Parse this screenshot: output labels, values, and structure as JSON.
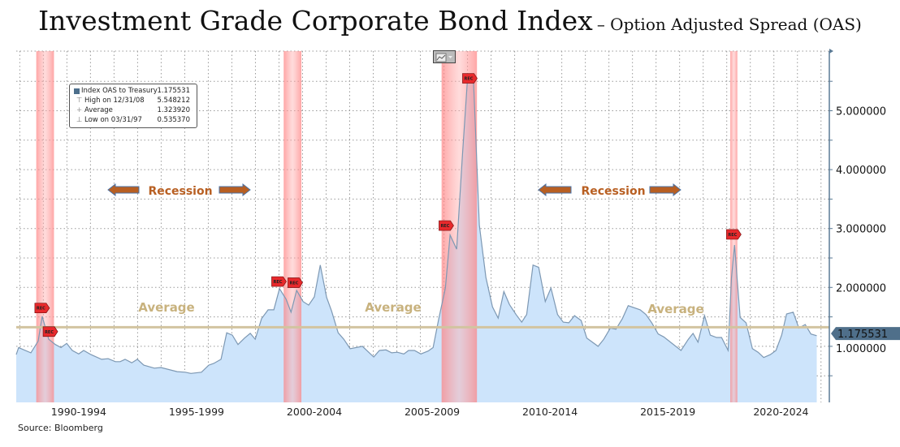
{
  "title": "Investment Grade Corporate Bond Index",
  "subtitle": "– Option Adjusted Spread (OAS)",
  "source": "Source: Bloomberg",
  "legend": {
    "rows": [
      {
        "label": "Index OAS to Treasury",
        "value": "1.175531",
        "icon": "square-icon"
      },
      {
        "label": "High on 12/31/08",
        "value": "5.548212",
        "icon": "high-marker-icon"
      },
      {
        "label": "Average",
        "value": "1.323920",
        "icon": "average-marker-icon"
      },
      {
        "label": "Low on 03/31/97",
        "value": "0.535370",
        "icon": "low-marker-icon"
      }
    ]
  },
  "annotations": {
    "recession_label": "Recession",
    "average_label": "Average",
    "rec_marker": "REC",
    "last_value": "1.175531"
  },
  "colors": {
    "area": "#cde4fb",
    "line": "#7d98b3",
    "average": "#d2c4a0",
    "recession": "#ff8a8a",
    "axis": "#5a7a95",
    "arrow": "#b85f22",
    "arrow_outline": "#4a73a8"
  },
  "chart_data": {
    "type": "area",
    "title": "Investment Grade Corporate Bond Index – Option Adjusted Spread (OAS)",
    "xlabel": "",
    "ylabel": "",
    "xlim": [
      1989.85,
      2024.25
    ],
    "ylim": [
      0,
      5.97
    ],
    "grid": true,
    "x_tick_labels": [
      {
        "label": "1990-1994",
        "at": 1992.5
      },
      {
        "label": "1995-1999",
        "at": 1997.5
      },
      {
        "label": "2000-2004",
        "at": 2002.5
      },
      {
        "label": "2005-2009",
        "at": 2007.5
      },
      {
        "label": "2010-2014",
        "at": 2012.5
      },
      {
        "label": "2015-2019",
        "at": 2017.5
      },
      {
        "label": "2020-2024",
        "at": 2022.3
      }
    ],
    "y_ticks": [
      {
        "label": "1.000000",
        "value": 1
      },
      {
        "label": "2.000000",
        "value": 2
      },
      {
        "label": "3.000000",
        "value": 3
      },
      {
        "label": "4.000000",
        "value": 4
      },
      {
        "label": "5.000000",
        "value": 5
      }
    ],
    "average": 1.32392,
    "recessions": [
      [
        1990.7,
        1991.45
      ],
      [
        2001.2,
        2001.95
      ],
      [
        2007.9,
        2009.4
      ],
      [
        2020.15,
        2020.45
      ]
    ],
    "series": [
      {
        "name": "Index OAS to Treasury",
        "points": [
          [
            1989.85,
            0.86
          ],
          [
            1989.95,
            0.98
          ],
          [
            1990.47,
            0.89
          ],
          [
            1990.78,
            1.09
          ],
          [
            1990.95,
            1.51
          ],
          [
            1991.23,
            1.12
          ],
          [
            1991.51,
            1.03
          ],
          [
            1991.75,
            0.98
          ],
          [
            1991.99,
            1.05
          ],
          [
            1992.23,
            0.93
          ],
          [
            1992.5,
            0.87
          ],
          [
            1992.71,
            0.93
          ],
          [
            1993.02,
            0.86
          ],
          [
            1993.47,
            0.78
          ],
          [
            1993.75,
            0.79
          ],
          [
            1994.06,
            0.74
          ],
          [
            1994.26,
            0.74
          ],
          [
            1994.47,
            0.78
          ],
          [
            1994.75,
            0.72
          ],
          [
            1994.99,
            0.78
          ],
          [
            1995.26,
            0.68
          ],
          [
            1995.71,
            0.63
          ],
          [
            1995.99,
            0.64
          ],
          [
            1996.68,
            0.57
          ],
          [
            1997.02,
            0.56
          ],
          [
            1997.26,
            0.54
          ],
          [
            1997.71,
            0.56
          ],
          [
            1998.02,
            0.68
          ],
          [
            1998.23,
            0.71
          ],
          [
            1998.54,
            0.78
          ],
          [
            1998.78,
            1.23
          ],
          [
            1999.02,
            1.19
          ],
          [
            1999.26,
            1.03
          ],
          [
            1999.54,
            1.14
          ],
          [
            1999.78,
            1.22
          ],
          [
            1999.99,
            1.12
          ],
          [
            2000.26,
            1.47
          ],
          [
            2000.54,
            1.62
          ],
          [
            2000.78,
            1.62
          ],
          [
            2001.02,
            1.98
          ],
          [
            2001.3,
            1.8
          ],
          [
            2001.51,
            1.58
          ],
          [
            2001.75,
            1.95
          ],
          [
            2002.02,
            1.76
          ],
          [
            2002.26,
            1.7
          ],
          [
            2002.5,
            1.84
          ],
          [
            2002.75,
            2.38
          ],
          [
            2003.02,
            1.83
          ],
          [
            2003.23,
            1.6
          ],
          [
            2003.51,
            1.23
          ],
          [
            2003.75,
            1.12
          ],
          [
            2004.02,
            0.96
          ],
          [
            2004.54,
            1.0
          ],
          [
            2005.02,
            0.82
          ],
          [
            2005.26,
            0.93
          ],
          [
            2005.54,
            0.94
          ],
          [
            2005.78,
            0.89
          ],
          [
            2006.02,
            0.9
          ],
          [
            2006.3,
            0.87
          ],
          [
            2006.5,
            0.93
          ],
          [
            2006.75,
            0.93
          ],
          [
            2007.02,
            0.87
          ],
          [
            2007.33,
            0.92
          ],
          [
            2007.54,
            0.98
          ],
          [
            2007.78,
            1.47
          ],
          [
            2008.06,
            1.99
          ],
          [
            2008.26,
            2.89
          ],
          [
            2008.54,
            2.65
          ],
          [
            2008.78,
            4.22
          ],
          [
            2009.0,
            5.55
          ],
          [
            2009.26,
            5.46
          ],
          [
            2009.5,
            3.06
          ],
          [
            2009.78,
            2.17
          ],
          [
            2010.06,
            1.67
          ],
          [
            2010.3,
            1.48
          ],
          [
            2010.54,
            1.93
          ],
          [
            2010.78,
            1.71
          ],
          [
            2011.06,
            1.54
          ],
          [
            2011.3,
            1.41
          ],
          [
            2011.51,
            1.54
          ],
          [
            2011.78,
            2.38
          ],
          [
            2012.02,
            2.34
          ],
          [
            2012.3,
            1.76
          ],
          [
            2012.54,
            1.99
          ],
          [
            2012.82,
            1.54
          ],
          [
            2013.06,
            1.41
          ],
          [
            2013.3,
            1.4
          ],
          [
            2013.54,
            1.52
          ],
          [
            2013.82,
            1.44
          ],
          [
            2014.06,
            1.14
          ],
          [
            2014.54,
            1.0
          ],
          [
            2014.78,
            1.12
          ],
          [
            2015.06,
            1.31
          ],
          [
            2015.3,
            1.29
          ],
          [
            2015.57,
            1.47
          ],
          [
            2015.82,
            1.69
          ],
          [
            2016.33,
            1.62
          ],
          [
            2016.57,
            1.54
          ],
          [
            2016.82,
            1.4
          ],
          [
            2017.09,
            1.21
          ],
          [
            2017.33,
            1.16
          ],
          [
            2018.06,
            0.93
          ],
          [
            2018.37,
            1.12
          ],
          [
            2018.57,
            1.22
          ],
          [
            2018.78,
            1.07
          ],
          [
            2019.06,
            1.52
          ],
          [
            2019.3,
            1.19
          ],
          [
            2019.57,
            1.15
          ],
          [
            2019.78,
            1.15
          ],
          [
            2020.06,
            0.93
          ],
          [
            2020.2,
            2.16
          ],
          [
            2020.33,
            2.72
          ],
          [
            2020.57,
            1.49
          ],
          [
            2020.82,
            1.4
          ],
          [
            2021.09,
            0.96
          ],
          [
            2021.33,
            0.9
          ],
          [
            2021.57,
            0.81
          ],
          [
            2021.85,
            0.86
          ],
          [
            2022.09,
            0.93
          ],
          [
            2022.33,
            1.19
          ],
          [
            2022.54,
            1.55
          ],
          [
            2022.82,
            1.58
          ],
          [
            2023.06,
            1.31
          ],
          [
            2023.33,
            1.37
          ],
          [
            2023.57,
            1.21
          ],
          [
            2023.82,
            1.18
          ]
        ]
      }
    ],
    "rec_markers": [
      [
        1990.95,
        1.65
      ],
      [
        1991.3,
        1.25
      ],
      [
        2001.0,
        2.1
      ],
      [
        2001.45,
        2.08
      ],
      [
        2008.1,
        3.05
      ],
      [
        2009.1,
        5.55
      ],
      [
        2020.3,
        2.9
      ]
    ]
  }
}
